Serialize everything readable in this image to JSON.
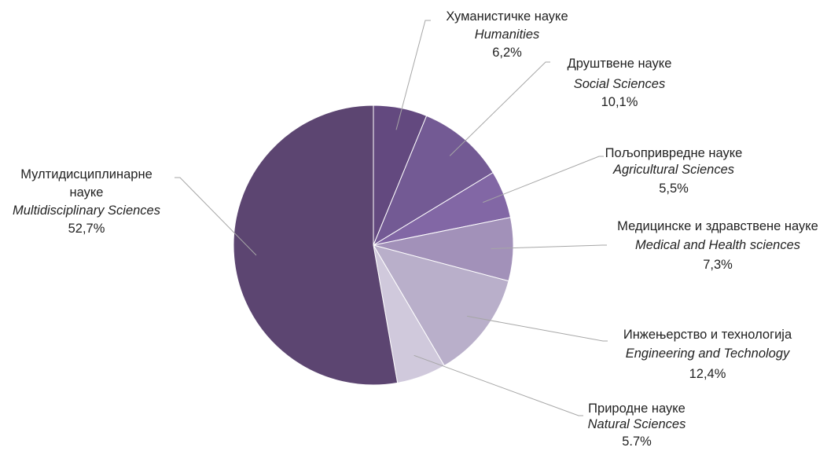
{
  "chart_data": {
    "type": "pie",
    "start_angle_deg": 0,
    "direction": "clockwise",
    "slices": [
      {
        "label_sr": "Хуманистичке науке",
        "label_en": "Humanities",
        "pct_label": "6,2%",
        "value": 6.2,
        "color": "#63497f"
      },
      {
        "label_sr": "Друштвене науке",
        "label_en": "Social Sciences",
        "pct_label": "10,1%",
        "value": 10.1,
        "color": "#735a94"
      },
      {
        "label_sr": "Пољопривредне науке",
        "label_en": "Agricultural Sciences",
        "pct_label": "5,5%",
        "value": 5.5,
        "color": "#8267a5"
      },
      {
        "label_sr": "Медицинске и здравствене науке",
        "label_en": "Medical and Health sciences",
        "pct_label": "7,3%",
        "value": 7.3,
        "color": "#a291b9"
      },
      {
        "label_sr": "Инжењерство и технологија",
        "label_en": "Engineering and Technology",
        "pct_label": "12,4%",
        "value": 12.4,
        "color": "#b9afca"
      },
      {
        "label_sr": "Природне науке",
        "label_en": "Natural Sciences",
        "pct_label": "5.7%",
        "value": 5.7,
        "color": "#d0c9dc"
      },
      {
        "label_sr": "Мултидисциплинарне науке",
        "label_en": "Multidisciplinary Sciences",
        "pct_label": "52,7%",
        "value": 52.7,
        "color": "#5c4571"
      }
    ]
  }
}
